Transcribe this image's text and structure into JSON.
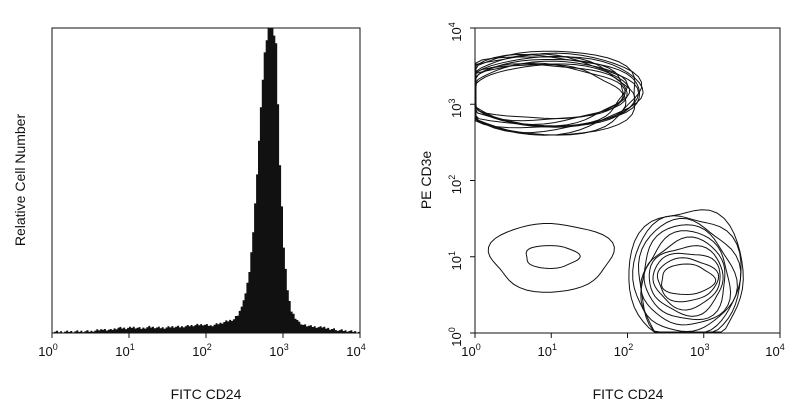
{
  "chart_data": [
    {
      "type": "area",
      "scale": "log",
      "xlabel": "FITC CD24",
      "ylabel": "Relative Cell Number",
      "xlim": [
        1,
        10000
      ],
      "x_ticks": [
        {
          "base": "10",
          "exp": "0",
          "value": 1
        },
        {
          "base": "10",
          "exp": "1",
          "value": 10
        },
        {
          "base": "10",
          "exp": "2",
          "value": 100
        },
        {
          "base": "10",
          "exp": "3",
          "value": 1000
        },
        {
          "base": "10",
          "exp": "4",
          "value": 10000
        }
      ],
      "y_unit": "relative, fraction of plot height",
      "histogram": {
        "x": [
          1,
          3.16,
          4.47,
          5.62,
          7.08,
          8.91,
          11.2,
          14.1,
          17.8,
          22.4,
          28.2,
          35.5,
          44.7,
          56.2,
          70.8,
          89.1,
          112,
          141,
          178,
          224,
          251,
          282,
          316,
          355,
          398,
          447,
          501,
          562,
          631,
          708,
          794,
          891,
          1000,
          1122,
          1259,
          1413,
          1585,
          1778,
          2239,
          3162,
          5012,
          10000
        ],
        "y": [
          0.004,
          0.006,
          0.012,
          0.01,
          0.017,
          0.016,
          0.019,
          0.015,
          0.02,
          0.018,
          0.017,
          0.021,
          0.02,
          0.023,
          0.026,
          0.028,
          0.024,
          0.03,
          0.038,
          0.045,
          0.06,
          0.085,
          0.13,
          0.2,
          0.33,
          0.52,
          0.74,
          0.92,
          1.0,
          1.0,
          0.95,
          0.55,
          0.28,
          0.14,
          0.07,
          0.05,
          0.035,
          0.028,
          0.022,
          0.018,
          0.01,
          0.003
        ],
        "fill": "#111111"
      }
    },
    {
      "type": "contour",
      "scale": "log",
      "xlabel": "FITC CD24",
      "ylabel": "PE CD3e",
      "xlim": [
        1,
        10000
      ],
      "ylim": [
        1,
        10000
      ],
      "x_ticks": [
        {
          "base": "10",
          "exp": "0",
          "value": 1
        },
        {
          "base": "10",
          "exp": "1",
          "value": 10
        },
        {
          "base": "10",
          "exp": "2",
          "value": 100
        },
        {
          "base": "10",
          "exp": "3",
          "value": 1000
        },
        {
          "base": "10",
          "exp": "4",
          "value": 10000
        }
      ],
      "y_ticks": [
        {
          "base": "10",
          "exp": "0",
          "value": 1
        },
        {
          "base": "10",
          "exp": "1",
          "value": 10
        },
        {
          "base": "10",
          "exp": "2",
          "value": 100
        },
        {
          "base": "10",
          "exp": "3",
          "value": 1000
        },
        {
          "base": "10",
          "exp": "4",
          "value": 10000
        }
      ],
      "populations": [
        {
          "center_x": 8,
          "center_y": 1400,
          "half_width_log": [
            1.0,
            1.3
          ],
          "half_height_log": [
            0.35,
            0.55
          ],
          "levels": 12
        },
        {
          "center_x": 600,
          "center_y": 5,
          "half_width_log": [
            0.35,
            0.75
          ],
          "half_height_log": [
            0.2,
            0.95
          ],
          "levels": 10
        },
        {
          "center_x": 10,
          "center_y": 10,
          "half_width_log": [
            0.35,
            0.8
          ],
          "half_height_log": [
            0.15,
            0.45
          ],
          "levels": 2
        }
      ],
      "line_color": "#111111"
    }
  ]
}
